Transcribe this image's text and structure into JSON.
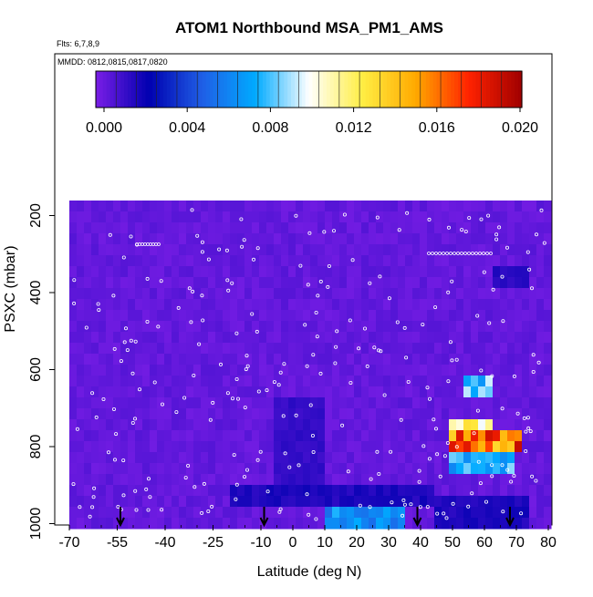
{
  "chart_data": {
    "type": "heatmap",
    "title": "ATOM1 Northbound MSA_PM1_AMS",
    "flights_label": "Flts: 6,7,8,9",
    "dates_label": "MMDD: 0812,0815,0817,0820",
    "xlabel": "Latitude (deg N)",
    "ylabel": "PSXC (mbar)",
    "xlim": [
      -70,
      80
    ],
    "ylim": [
      1000,
      0
    ],
    "x_ticks": [
      "-70",
      "-55",
      "-40",
      "-25",
      "-10",
      "0",
      "10",
      "20",
      "30",
      "40",
      "50",
      "60",
      "70",
      "80"
    ],
    "x_tick_values": [
      -70,
      -55,
      -40,
      -25,
      -10,
      0,
      10,
      20,
      30,
      40,
      50,
      60,
      70,
      80
    ],
    "y_ticks": [
      "200",
      "400",
      "600",
      "800",
      "1000"
    ],
    "y_tick_values": [
      200,
      400,
      600,
      800,
      1000
    ],
    "colorbar": {
      "range": [
        0.0,
        0.021
      ],
      "ticks": [
        "0.000",
        "0.004",
        "0.008",
        "0.012",
        "0.016",
        "0.020"
      ],
      "tick_values": [
        0.0,
        0.004,
        0.008,
        0.012,
        0.016,
        0.02
      ],
      "colors": [
        "#7a1ee6",
        "#0000b0",
        "#1f5fe6",
        "#00aaff",
        "#ffffff",
        "#ffee44",
        "#ffaa00",
        "#ff2200",
        "#a00000"
      ]
    },
    "background_value": 0.0005,
    "features": [
      {
        "lat_range": [
          -5,
          10
        ],
        "p_range": [
          680,
          900
        ],
        "value": 0.0015
      },
      {
        "lat_range": [
          -20,
          45
        ],
        "p_range": [
          900,
          960
        ],
        "value": 0.002
      },
      {
        "lat_range": [
          10,
          35
        ],
        "p_range": [
          955,
          1000
        ],
        "value": 0.007
      },
      {
        "lat_range": [
          45,
          75
        ],
        "p_range": [
          930,
          1000
        ],
        "value": 0.002
      },
      {
        "lat_range": [
          54,
          63
        ],
        "p_range": [
          620,
          670
        ],
        "value": 0.0085
      },
      {
        "lat_range": [
          48,
          62
        ],
        "p_range": [
          720,
          770
        ],
        "value": 0.0125
      },
      {
        "lat_range": [
          48,
          72
        ],
        "p_range": [
          770,
          820
        ],
        "value": 0.017
      },
      {
        "lat_range": [
          48,
          70
        ],
        "p_range": [
          820,
          860
        ],
        "value": 0.008
      },
      {
        "lat_range": [
          63,
          73
        ],
        "p_range": [
          320,
          400
        ],
        "value": 0.0018
      }
    ],
    "arrows_lat": [
      -54,
      -9,
      39,
      68
    ]
  }
}
